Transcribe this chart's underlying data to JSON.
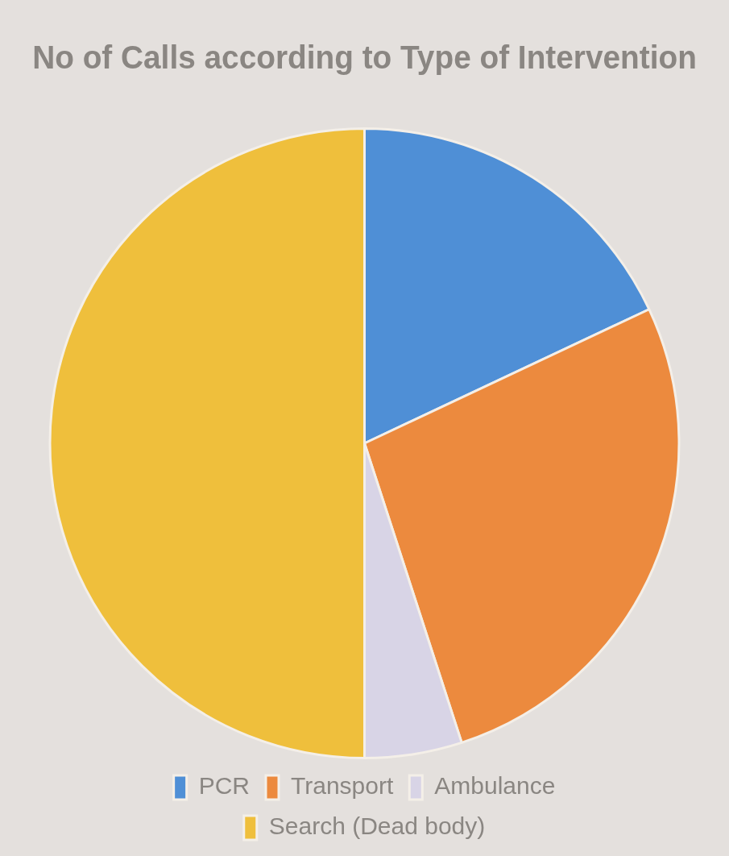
{
  "chart_data": {
    "type": "pie",
    "title": "No of Calls according to Type of Intervention",
    "categories": [
      "PCR",
      "Transport",
      "Ambulance",
      "Search (Dead body)"
    ],
    "values": [
      18,
      27,
      5,
      50
    ],
    "colors": [
      "#4f8fd6",
      "#ec8a3e",
      "#d8d4e6",
      "#efbf3c"
    ],
    "legend": "bottom"
  }
}
